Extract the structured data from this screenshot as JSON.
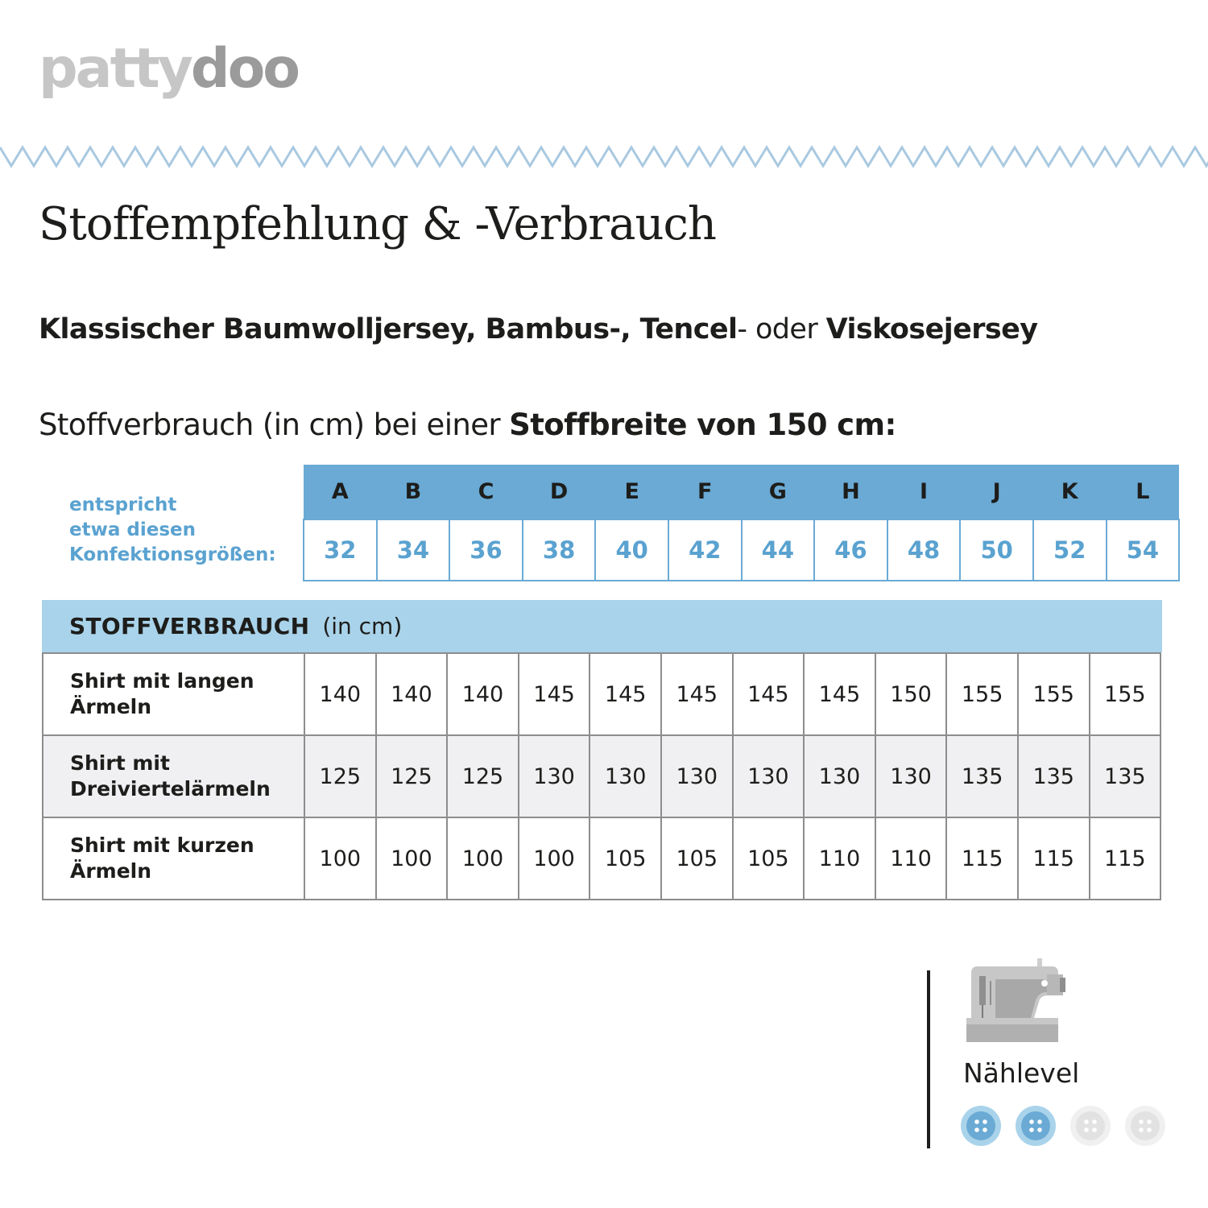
{
  "logo": {
    "part1": "patty",
    "part2": "doo"
  },
  "title": "Stoffempfehlung & -Verbrauch",
  "fabrics": {
    "f1": "Klassischer Baumwolljersey, Bambus-, Tencel",
    "sep": "- oder ",
    "f2": "Viskosejersey"
  },
  "usage_line": {
    "normal": "Stoffverbrauch (in cm) bei einer ",
    "bold": "Stoffbreite von 150 cm:"
  },
  "size_note": [
    "entspricht",
    "etwa diesen",
    "Konfektionsgrößen:"
  ],
  "sizes": {
    "letters": [
      "A",
      "B",
      "C",
      "D",
      "E",
      "F",
      "G",
      "H",
      "I",
      "J",
      "K",
      "L"
    ],
    "numbers": [
      "32",
      "34",
      "36",
      "38",
      "40",
      "42",
      "44",
      "46",
      "48",
      "50",
      "52",
      "54"
    ]
  },
  "usage_table": {
    "heading_bold": "STOFFVERBRAUCH",
    "heading_unit": "(in cm)",
    "rows": [
      {
        "label_1": "Shirt mit langen",
        "label_2": "Ärmeln",
        "values": [
          "140",
          "140",
          "140",
          "145",
          "145",
          "145",
          "145",
          "145",
          "150",
          "155",
          "155",
          "155"
        ]
      },
      {
        "label_1": "Shirt mit",
        "label_2": "Dreiviertelärmeln",
        "values": [
          "125",
          "125",
          "125",
          "130",
          "130",
          "130",
          "130",
          "130",
          "130",
          "135",
          "135",
          "135"
        ]
      },
      {
        "label_1": "Shirt mit kurzen",
        "label_2": "Ärmeln",
        "values": [
          "100",
          "100",
          "100",
          "100",
          "105",
          "105",
          "105",
          "110",
          "110",
          "115",
          "115",
          "115"
        ]
      }
    ]
  },
  "level": {
    "label": "Nählevel",
    "value": 2,
    "max": 4,
    "active_color": "#6aaad5",
    "inactive_color": "#e2e2e2"
  },
  "colors": {
    "accent": "#6aaad5",
    "accent_light": "#a9d3ea",
    "text_blue": "#5aa2d0"
  },
  "icons": {
    "machine": "sewing-machine-icon",
    "level_marker": "button-icon"
  }
}
